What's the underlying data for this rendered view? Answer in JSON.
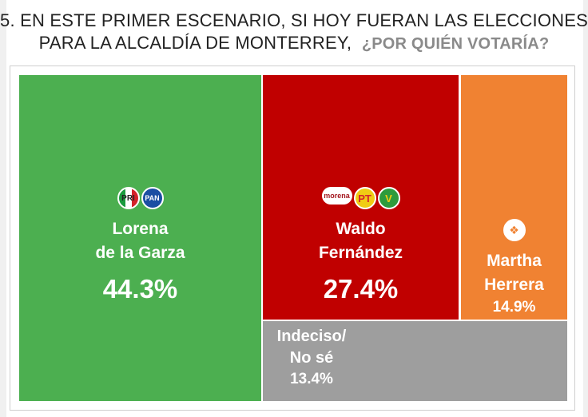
{
  "title": {
    "line1": "5. EN ESTE PRIMER ESCENARIO, SI HOY FUERAN LAS ELECCIONES",
    "line2": "PARA LA ALCALDÍA DE MONTERREY,",
    "question": "¿POR QUIÉN VOTARÍA?"
  },
  "chart_data": {
    "type": "treemap",
    "unit": "%",
    "items": [
      {
        "name_line1": "Lorena",
        "name_line2": "de la Garza",
        "value": 44.3,
        "value_label": "44.3%",
        "color": "#4caf50",
        "logos": [
          "PRI",
          "PAN"
        ]
      },
      {
        "name_line1": "Waldo",
        "name_line2": "Fernández",
        "value": 27.4,
        "value_label": "27.4%",
        "color": "#c00000",
        "logos": [
          "morena",
          "PT",
          "PVEM"
        ]
      },
      {
        "name_line1": "Martha",
        "name_line2": "Herrera",
        "value": 14.9,
        "value_label": "14.9%",
        "color": "#f08232",
        "logos": [
          "MC"
        ]
      },
      {
        "name_line1": "Indeciso/",
        "name_line2": "No sé",
        "value": 13.4,
        "value_label": "13.4%",
        "color": "#9e9e9e",
        "logos": []
      }
    ]
  }
}
